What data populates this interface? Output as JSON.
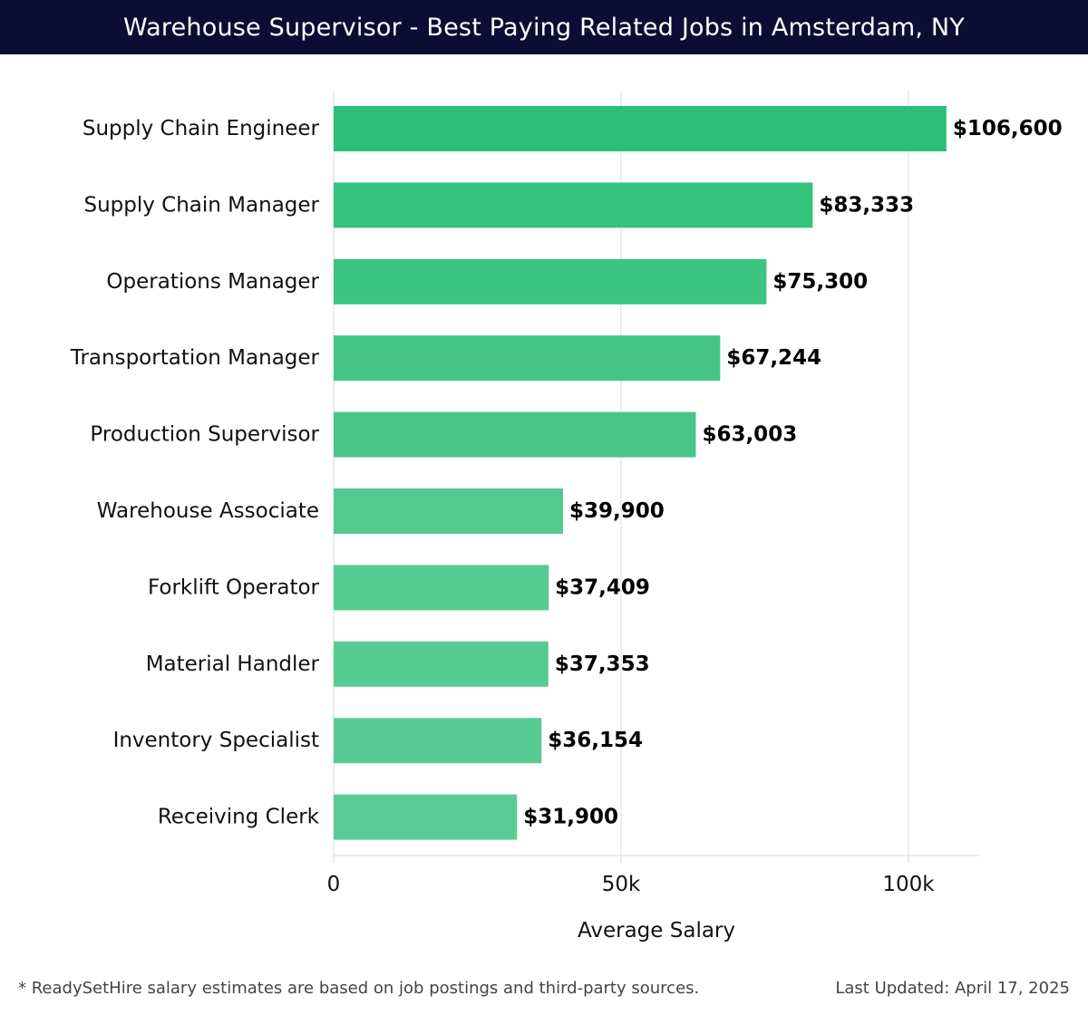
{
  "header": {
    "title": "Warehouse Supervisor - Best Paying Related Jobs in Amsterdam, NY"
  },
  "chart_data": {
    "type": "bar",
    "orientation": "horizontal",
    "categories": [
      "Supply Chain Engineer",
      "Supply Chain Manager",
      "Operations Manager",
      "Transportation Manager",
      "Production Supervisor",
      "Warehouse Associate",
      "Forklift Operator",
      "Material Handler",
      "Inventory Specialist",
      "Receiving Clerk"
    ],
    "values": [
      106600,
      83333,
      75300,
      67244,
      63003,
      39900,
      37409,
      37353,
      36154,
      31900
    ],
    "value_labels": [
      "$106,600",
      "$83,333",
      "$75,300",
      "$67,244",
      "$63,003",
      "$39,900",
      "$37,409",
      "$37,353",
      "$36,154",
      "$31,900"
    ],
    "xlabel": "Average Salary",
    "xlim": [
      0,
      112000
    ],
    "x_ticks": [
      0,
      50000,
      100000
    ],
    "x_tick_labels": [
      "0",
      "50k",
      "100k"
    ],
    "grid": "vertical",
    "bar_colors": [
      "#2bbf78",
      "#34c27d",
      "#3cc482",
      "#44c586",
      "#48c589",
      "#52c98f",
      "#55ca91",
      "#56cb92",
      "#57cb93",
      "#59cc95"
    ]
  },
  "footer": {
    "note": "* ReadySetHire salary estimates are based on job postings and third-party sources.",
    "updated": "Last Updated: April 17, 2025"
  }
}
